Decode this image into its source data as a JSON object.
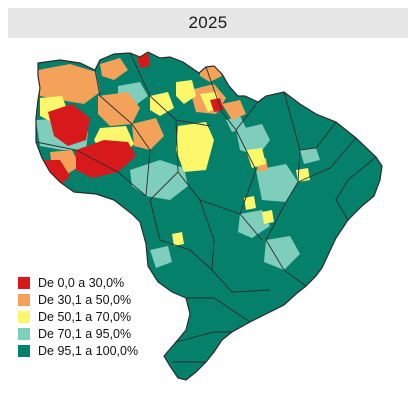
{
  "map": {
    "title": "2025",
    "colors": {
      "c1": "#d7191c",
      "c2": "#f4a15a",
      "c3": "#fdf76b",
      "c4": "#7fcdbb",
      "c5": "#04806b",
      "border": "#2b2b2b"
    },
    "legend": [
      {
        "label": "De 0,0 a 30,0%",
        "color": "#d7191c",
        "icon": "legend-swatch-red"
      },
      {
        "label": "De 30,1 a 50,0%",
        "color": "#f4a15a",
        "icon": "legend-swatch-orange"
      },
      {
        "label": "De 50,1 a 70,0%",
        "color": "#fdf76b",
        "icon": "legend-swatch-yellow"
      },
      {
        "label": "De 70,1 a 95,0%",
        "color": "#7fcdbb",
        "icon": "legend-swatch-light-teal"
      },
      {
        "label": "De 95,1 a 100,0%",
        "color": "#04806b",
        "icon": "legend-swatch-dark-teal"
      }
    ]
  }
}
